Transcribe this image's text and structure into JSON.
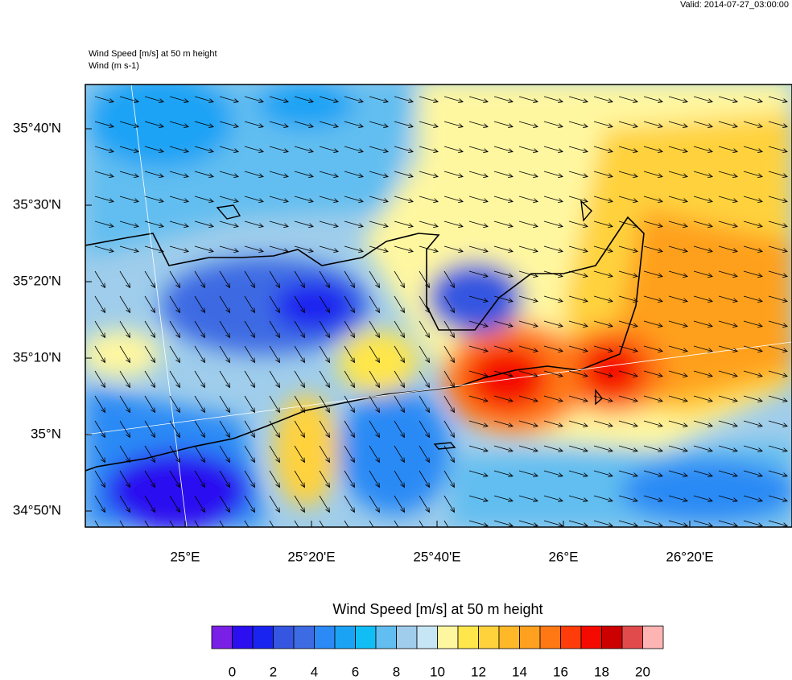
{
  "valid": "Valid: 2014-07-27_03:00:00",
  "title": "Wind Speed [m/s] at 50 m height",
  "subtitle": "Wind   (m s-1)",
  "lat_labels": [
    "35°40'N",
    "35°30'N",
    "35°20'N",
    "35°10'N",
    "35°N",
    "34°50'N"
  ],
  "lon_labels": [
    "25°E",
    "25°20'E",
    "25°40'E",
    "26°E",
    "26°20'E"
  ],
  "colorbar": {
    "title": "Wind Speed [m/s] at 50 m height",
    "colors": [
      "#7a1fe6",
      "#2b0ff0",
      "#1a24f0",
      "#3556e0",
      "#3d6be3",
      "#2b8af5",
      "#1aa3f5",
      "#10bef5",
      "#62bef0",
      "#9fcdeb",
      "#c6e6f5",
      "#fff7a0",
      "#ffe64a",
      "#ffd23c",
      "#ffb928",
      "#ffa01e",
      "#ff7814",
      "#ff3c0a",
      "#f50a00",
      "#cd0000",
      "#e14b4b",
      "#ffb4b4"
    ],
    "labels": [
      "0",
      "2",
      "4",
      "6",
      "8",
      "10",
      "12",
      "14",
      "16",
      "18",
      "20"
    ]
  }
}
